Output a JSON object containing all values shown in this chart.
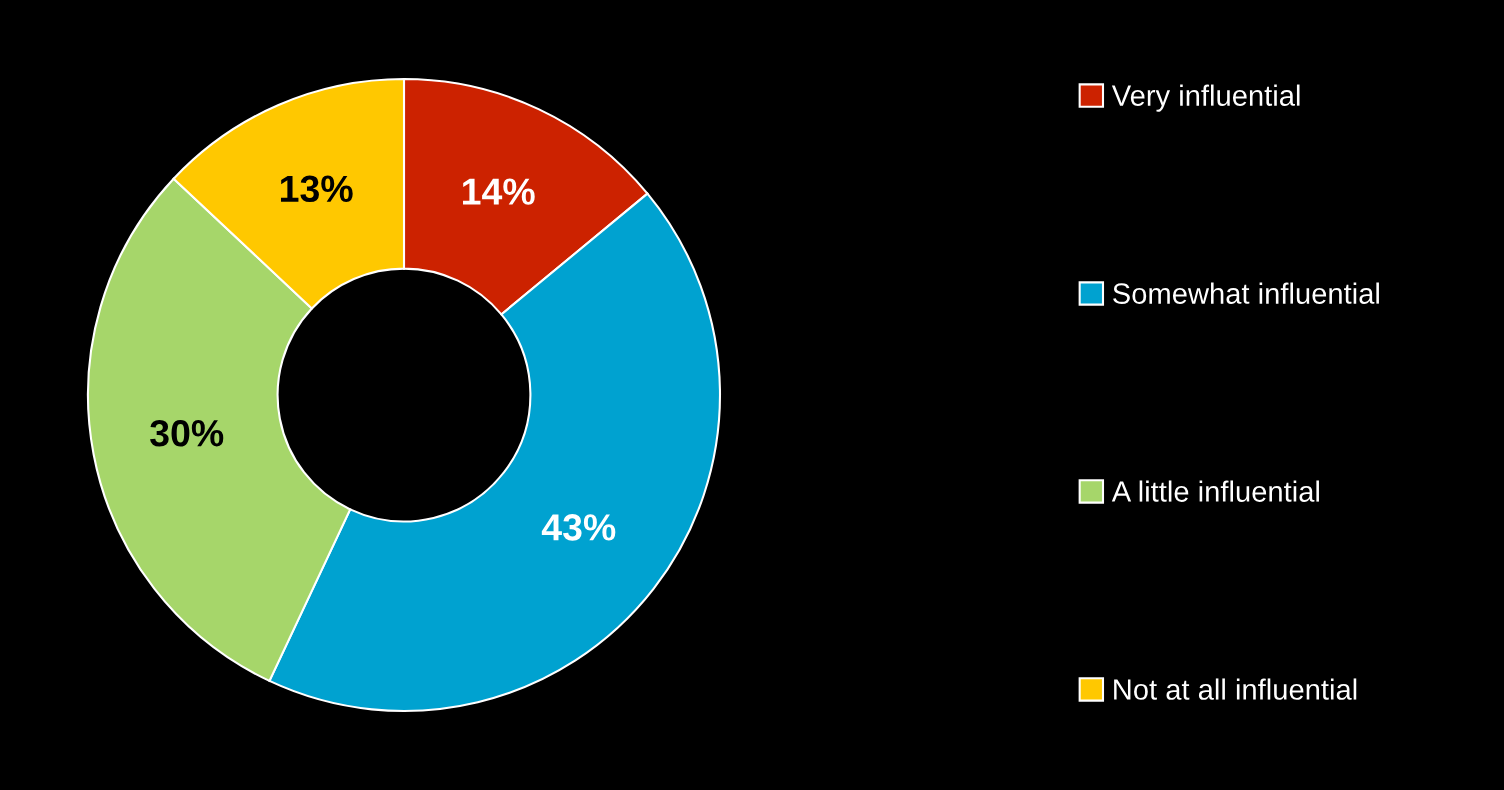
{
  "chart_data": {
    "type": "donut",
    "categories": [
      "Very influential",
      "Somewhat influential",
      "A little influential",
      "Not at all influential"
    ],
    "values": [
      14,
      43,
      30,
      13
    ],
    "colors": [
      "#cc2200",
      "#00a2d0",
      "#a6d66a",
      "#ffc800"
    ],
    "value_labels": [
      "14%",
      "43%",
      "30%",
      "13%"
    ],
    "legend": "right"
  }
}
